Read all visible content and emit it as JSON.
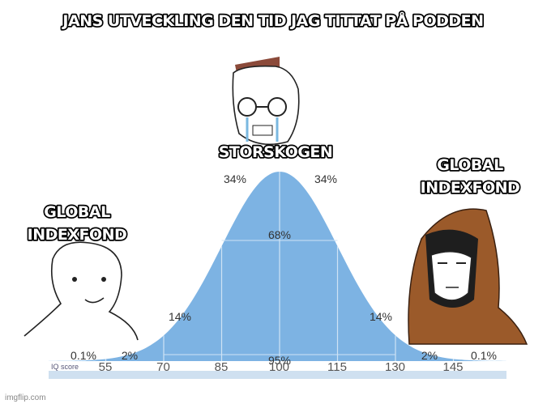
{
  "title": "JANS UTVECKLING DEN TID JAG TITTAT PÅ PODDEN",
  "captions": {
    "left": [
      "GLOBAL",
      "INDEXFOND"
    ],
    "middle": "STORSKOGEN",
    "right": [
      "GLOBAL",
      "INDEXFOND"
    ]
  },
  "curve": {
    "percent_labels": [
      "0.1%",
      "2%",
      "14%",
      "34%",
      "34%",
      "14%",
      "2%",
      "0.1%"
    ],
    "range_labels": [
      "68%",
      "95%"
    ],
    "axis_title": "IQ score",
    "axis_labels": [
      "55",
      "70",
      "85",
      "100",
      "115",
      "130",
      "145"
    ]
  },
  "watermark": "imgflip.com"
}
